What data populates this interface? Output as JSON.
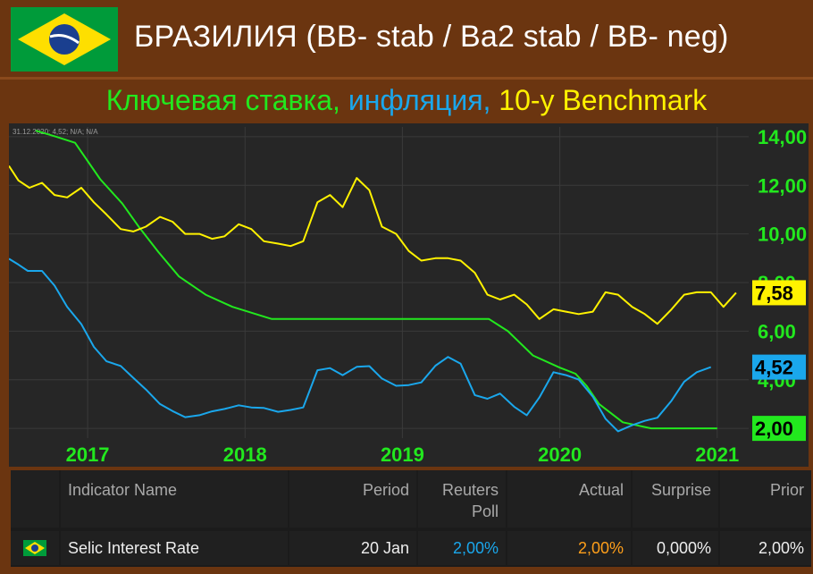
{
  "header": {
    "title": "БРАЗИЛИЯ (BB- stab / Ba2 stab / BB- neg)",
    "subtitle_green": "Ключевая ставка,",
    "subtitle_blue": "инфляция,",
    "subtitle_yellow": "10-y Benchmark"
  },
  "colors": {
    "background": "#6b3510",
    "chart_bg": "#262626",
    "selic": "#22e81e",
    "inflation": "#1aa7ec",
    "benchmark": "#fff200"
  },
  "chart_data": {
    "type": "line",
    "legend_text": "31.12.2020; 4,52; N/A; N/A",
    "x_labels": [
      "2017",
      "2018",
      "2019",
      "2020",
      "2021"
    ],
    "y_labels": [
      "14,00",
      "12,00",
      "10,00",
      "8,00",
      "6,00",
      "4,00",
      "2,00"
    ],
    "ylim": [
      1.6,
      14.4
    ],
    "xlim": [
      2016.5,
      2021.2
    ],
    "series": [
      {
        "key": "selic",
        "last_label": "2,00",
        "points": [
          [
            2016.67,
            14.25
          ],
          [
            2016.8,
            14.0
          ],
          [
            2016.92,
            13.75
          ],
          [
            2017.08,
            12.25
          ],
          [
            2017.22,
            11.25
          ],
          [
            2017.33,
            10.25
          ],
          [
            2017.45,
            9.25
          ],
          [
            2017.58,
            8.25
          ],
          [
            2017.75,
            7.5
          ],
          [
            2017.92,
            7.0
          ],
          [
            2018.17,
            6.5
          ],
          [
            2018.5,
            6.5
          ],
          [
            2019.0,
            6.5
          ],
          [
            2019.55,
            6.5
          ],
          [
            2019.67,
            6.0
          ],
          [
            2019.83,
            5.0
          ],
          [
            2020.0,
            4.5
          ],
          [
            2020.1,
            4.25
          ],
          [
            2020.17,
            3.75
          ],
          [
            2020.25,
            3.0
          ],
          [
            2020.4,
            2.25
          ],
          [
            2020.58,
            2.0
          ],
          [
            2020.75,
            2.0
          ],
          [
            2021.0,
            2.0
          ]
        ]
      },
      {
        "key": "inflation",
        "last_label": "4,52",
        "points": [
          [
            2016.5,
            8.98
          ],
          [
            2016.56,
            8.74
          ],
          [
            2016.62,
            8.48
          ],
          [
            2016.71,
            8.48
          ],
          [
            2016.79,
            7.87
          ],
          [
            2016.87,
            7.0
          ],
          [
            2016.96,
            6.29
          ],
          [
            2017.04,
            5.35
          ],
          [
            2017.12,
            4.76
          ],
          [
            2017.21,
            4.57
          ],
          [
            2017.29,
            4.08
          ],
          [
            2017.37,
            3.6
          ],
          [
            2017.46,
            3.0
          ],
          [
            2017.54,
            2.71
          ],
          [
            2017.62,
            2.46
          ],
          [
            2017.71,
            2.54
          ],
          [
            2017.79,
            2.7
          ],
          [
            2017.87,
            2.8
          ],
          [
            2017.96,
            2.95
          ],
          [
            2018.04,
            2.86
          ],
          [
            2018.12,
            2.84
          ],
          [
            2018.21,
            2.68
          ],
          [
            2018.29,
            2.76
          ],
          [
            2018.37,
            2.86
          ],
          [
            2018.46,
            4.39
          ],
          [
            2018.54,
            4.48
          ],
          [
            2018.62,
            4.19
          ],
          [
            2018.71,
            4.53
          ],
          [
            2018.79,
            4.56
          ],
          [
            2018.87,
            4.05
          ],
          [
            2018.96,
            3.75
          ],
          [
            2019.04,
            3.78
          ],
          [
            2019.12,
            3.89
          ],
          [
            2019.21,
            4.58
          ],
          [
            2019.29,
            4.94
          ],
          [
            2019.37,
            4.66
          ],
          [
            2019.46,
            3.37
          ],
          [
            2019.54,
            3.22
          ],
          [
            2019.62,
            3.43
          ],
          [
            2019.71,
            2.89
          ],
          [
            2019.79,
            2.54
          ],
          [
            2019.87,
            3.27
          ],
          [
            2019.96,
            4.31
          ],
          [
            2020.04,
            4.19
          ],
          [
            2020.12,
            4.01
          ],
          [
            2020.21,
            3.3
          ],
          [
            2020.29,
            2.4
          ],
          [
            2020.37,
            1.88
          ],
          [
            2020.46,
            2.13
          ],
          [
            2020.54,
            2.31
          ],
          [
            2020.62,
            2.44
          ],
          [
            2020.71,
            3.14
          ],
          [
            2020.79,
            3.92
          ],
          [
            2020.87,
            4.31
          ],
          [
            2020.96,
            4.52
          ]
        ]
      },
      {
        "key": "benchmark",
        "last_label": "7,58",
        "points": [
          [
            2016.5,
            12.8
          ],
          [
            2016.56,
            12.2
          ],
          [
            2016.63,
            11.9
          ],
          [
            2016.71,
            12.1
          ],
          [
            2016.79,
            11.6
          ],
          [
            2016.87,
            11.5
          ],
          [
            2016.96,
            11.9
          ],
          [
            2017.04,
            11.3
          ],
          [
            2017.12,
            10.8
          ],
          [
            2017.21,
            10.2
          ],
          [
            2017.29,
            10.1
          ],
          [
            2017.37,
            10.3
          ],
          [
            2017.46,
            10.7
          ],
          [
            2017.54,
            10.5
          ],
          [
            2017.62,
            10.0
          ],
          [
            2017.71,
            10.0
          ],
          [
            2017.79,
            9.8
          ],
          [
            2017.87,
            9.9
          ],
          [
            2017.96,
            10.4
          ],
          [
            2018.04,
            10.2
          ],
          [
            2018.12,
            9.7
          ],
          [
            2018.21,
            9.6
          ],
          [
            2018.29,
            9.5
          ],
          [
            2018.37,
            9.7
          ],
          [
            2018.46,
            11.3
          ],
          [
            2018.54,
            11.6
          ],
          [
            2018.62,
            11.1
          ],
          [
            2018.71,
            12.3
          ],
          [
            2018.79,
            11.8
          ],
          [
            2018.87,
            10.3
          ],
          [
            2018.96,
            10.0
          ],
          [
            2019.04,
            9.3
          ],
          [
            2019.12,
            8.9
          ],
          [
            2019.21,
            9.0
          ],
          [
            2019.29,
            9.0
          ],
          [
            2019.37,
            8.9
          ],
          [
            2019.46,
            8.4
          ],
          [
            2019.54,
            7.5
          ],
          [
            2019.62,
            7.3
          ],
          [
            2019.71,
            7.5
          ],
          [
            2019.79,
            7.1
          ],
          [
            2019.87,
            6.5
          ],
          [
            2019.96,
            6.9
          ],
          [
            2020.04,
            6.8
          ],
          [
            2020.12,
            6.7
          ],
          [
            2020.21,
            6.8
          ],
          [
            2020.29,
            7.6
          ],
          [
            2020.37,
            7.5
          ],
          [
            2020.46,
            7.0
          ],
          [
            2020.54,
            6.7
          ],
          [
            2020.62,
            6.3
          ],
          [
            2020.71,
            6.9
          ],
          [
            2020.79,
            7.5
          ],
          [
            2020.87,
            7.6
          ],
          [
            2020.96,
            7.6
          ],
          [
            2021.04,
            7.0
          ],
          [
            2021.12,
            7.58
          ]
        ]
      }
    ]
  },
  "table": {
    "headers": [
      "Indicator Name",
      "Period",
      "Reuters Poll",
      "Actual",
      "Surprise",
      "Prior"
    ],
    "row": {
      "name": "Selic Interest Rate",
      "period": "20 Jan",
      "poll": "2,00%",
      "actual": "2,00%",
      "surprise": "0,000%",
      "prior": "2,00%"
    },
    "poll_color": "#1aa7ec",
    "actual_color": "#ff9f1a"
  }
}
